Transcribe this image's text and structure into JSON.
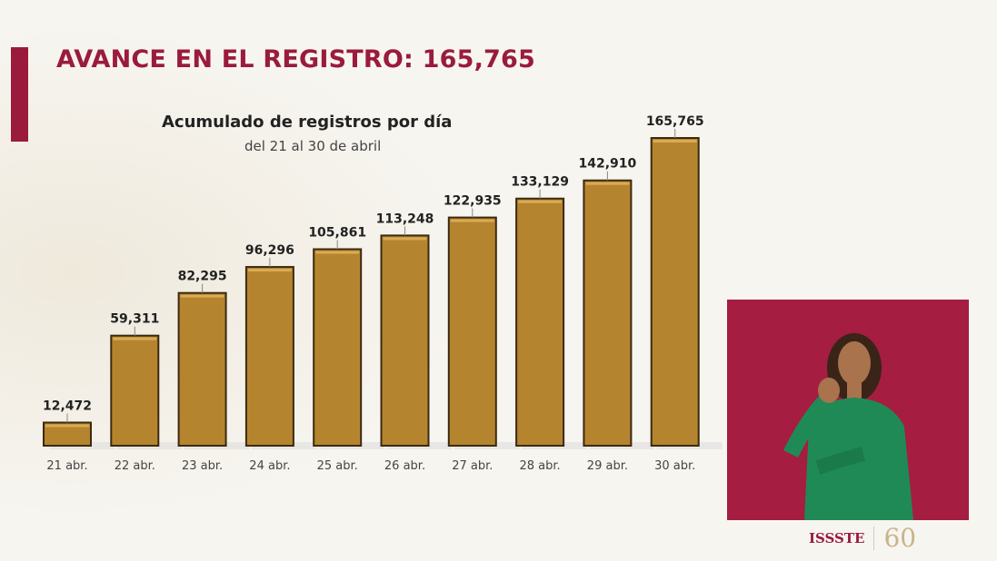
{
  "header": {
    "title": "AVANCE EN EL REGISTRO: 165,765"
  },
  "chart_data": {
    "type": "bar",
    "title": "Acumulado de registros por día",
    "subtitle": "del 21 al 30 de abril",
    "categories": [
      "21 abr.",
      "22 abr.",
      "23 abr.",
      "24 abr.",
      "25 abr.",
      "26 abr.",
      "27 abr.",
      "28 abr.",
      "29 abr.",
      "30 abr."
    ],
    "values": [
      12472,
      59311,
      82295,
      96296,
      105861,
      113248,
      122935,
      133129,
      142910,
      165765
    ],
    "data_labels": [
      "12,472",
      "59,311",
      "82,295",
      "96,296",
      "105,861",
      "113,248",
      "122,935",
      "133,129",
      "142,910",
      "165,765"
    ],
    "xlabel": "",
    "ylabel": "",
    "ylim": [
      0,
      165765
    ],
    "grid": false,
    "legend": "none",
    "bar_color": "#b5842e"
  },
  "footer": {
    "logo_text": "ISSSTE",
    "anniversary": "60"
  },
  "colors": {
    "accent": "#9a1b3c",
    "inset_bg": "#a51d41",
    "interpreter_dress": "#1f8a55"
  }
}
